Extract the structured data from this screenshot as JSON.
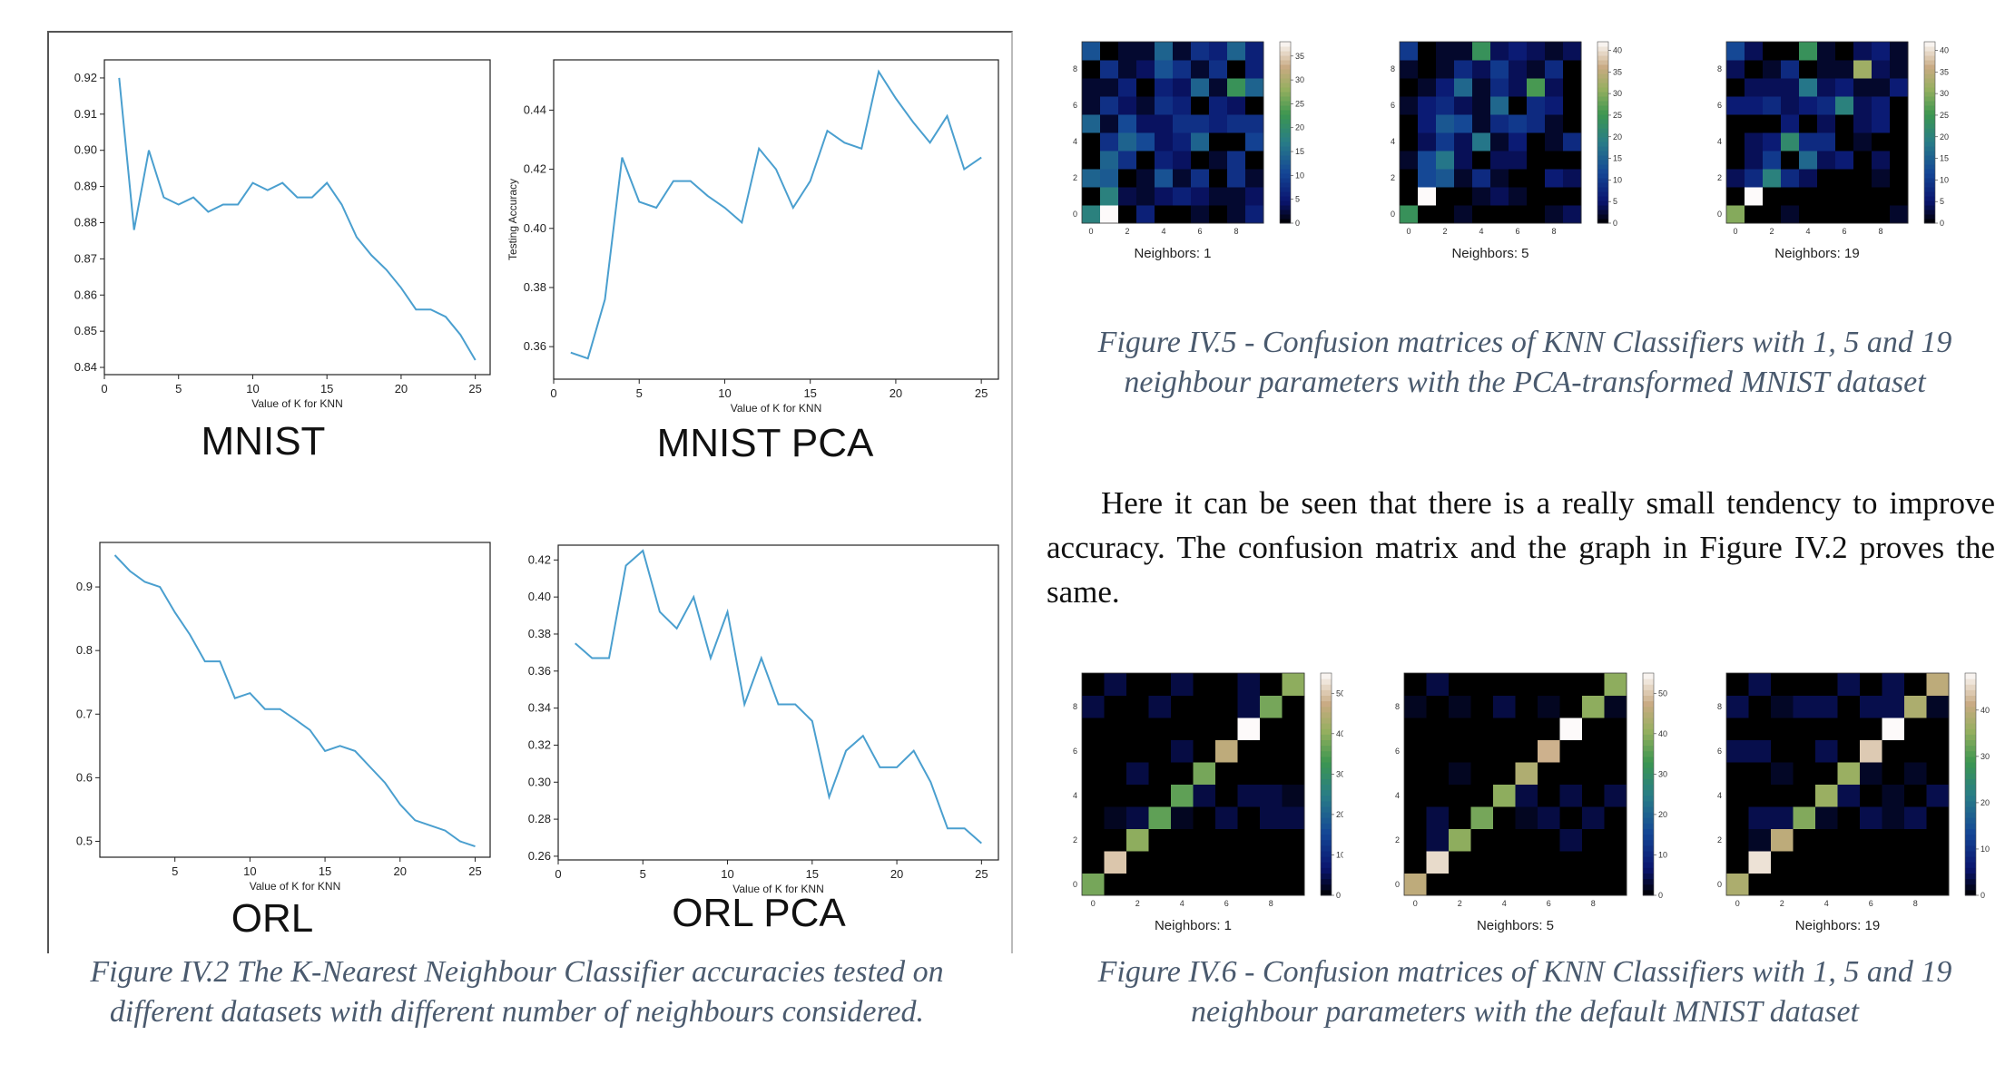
{
  "figure_iv2": {
    "caption": "Figure IV.2 The K-Nearest Neighbour Classifier accuracies tested on different datasets with different number of neighbours considered."
  },
  "figure_iv5": {
    "caption": "Figure IV.5 - Confusion matrices of KNN Classifiers with 1, 5 and 19 neighbour parameters with the PCA-transformed MNIST dataset"
  },
  "figure_iv6": {
    "caption": "Figure IV.6 - Confusion matrices of KNN Classifiers with 1, 5 and 19 neighbour parameters with the default MNIST dataset"
  },
  "body_paragraph": "Here it can be seen that there is a really small tendency to improve accuracy. The confusion matrix and the graph in Figure IV.2 proves the same.",
  "chart_data": [
    {
      "type": "line",
      "panel_label": "MNIST",
      "xlabel": "Value of K for KNN",
      "ylabel": "",
      "xlim": [
        0,
        26
      ],
      "ylim": [
        0.838,
        0.925
      ],
      "xticks": [
        0,
        5,
        10,
        15,
        20,
        25
      ],
      "yticks": [
        0.84,
        0.85,
        0.86,
        0.87,
        0.88,
        0.89,
        0.9,
        0.91,
        0.92
      ],
      "ytick_labels": [
        "0.84",
        "0.85",
        "0.86",
        "0.87",
        "0.88",
        "0.89",
        "0.90",
        "0.91",
        "0.92"
      ],
      "color": "#4a9fcf",
      "x": [
        1,
        2,
        3,
        4,
        5,
        6,
        7,
        8,
        9,
        10,
        11,
        12,
        13,
        14,
        15,
        16,
        17,
        18,
        19,
        20,
        21,
        22,
        23,
        24,
        25
      ],
      "y": [
        0.92,
        0.878,
        0.9,
        0.887,
        0.885,
        0.887,
        0.883,
        0.885,
        0.885,
        0.891,
        0.889,
        0.891,
        0.887,
        0.887,
        0.891,
        0.885,
        0.876,
        0.871,
        0.867,
        0.862,
        0.856,
        0.856,
        0.854,
        0.849,
        0.842
      ]
    },
    {
      "type": "line",
      "panel_label": "MNIST PCA",
      "xlabel": "Value of K for KNN",
      "ylabel": "Testing Accuracy",
      "xlim": [
        0,
        26
      ],
      "ylim": [
        0.349,
        0.457
      ],
      "xticks": [
        0,
        5,
        10,
        15,
        20,
        25
      ],
      "yticks": [
        0.36,
        0.38,
        0.4,
        0.42,
        0.44
      ],
      "ytick_labels": [
        "0.36",
        "0.38",
        "0.40",
        "0.42",
        "0.44"
      ],
      "color": "#4a9fcf",
      "x": [
        1,
        2,
        3,
        4,
        5,
        6,
        7,
        8,
        9,
        10,
        11,
        12,
        13,
        14,
        15,
        16,
        17,
        18,
        19,
        20,
        21,
        22,
        23,
        24,
        25
      ],
      "y": [
        0.358,
        0.356,
        0.376,
        0.424,
        0.409,
        0.407,
        0.416,
        0.416,
        0.411,
        0.407,
        0.402,
        0.427,
        0.42,
        0.407,
        0.416,
        0.433,
        0.429,
        0.427,
        0.453,
        0.444,
        0.436,
        0.429,
        0.438,
        0.42,
        0.424
      ]
    },
    {
      "type": "line",
      "panel_label": "ORL",
      "xlabel": "Value of K for KNN",
      "ylabel": "",
      "xlim": [
        0,
        26
      ],
      "ylim": [
        0.475,
        0.97
      ],
      "xticks": [
        5,
        10,
        15,
        20,
        25
      ],
      "yticks": [
        0.5,
        0.6,
        0.7,
        0.8,
        0.9
      ],
      "ytick_labels": [
        "0.5",
        "0.6",
        "0.7",
        "0.8",
        "0.9"
      ],
      "color": "#4a9fcf",
      "x": [
        1,
        2,
        3,
        4,
        5,
        6,
        7,
        8,
        9,
        10,
        11,
        12,
        13,
        14,
        15,
        16,
        17,
        18,
        19,
        20,
        21,
        22,
        23,
        24,
        25
      ],
      "y": [
        0.95,
        0.925,
        0.908,
        0.9,
        0.86,
        0.825,
        0.783,
        0.783,
        0.725,
        0.733,
        0.708,
        0.708,
        0.692,
        0.675,
        0.642,
        0.65,
        0.642,
        0.617,
        0.592,
        0.558,
        0.533,
        0.525,
        0.517,
        0.5,
        0.492
      ]
    },
    {
      "type": "line",
      "panel_label": "ORL PCA",
      "xlabel": "Value of K for KNN",
      "ylabel": "",
      "xlim": [
        0,
        26
      ],
      "ylim": [
        0.258,
        0.428
      ],
      "xticks": [
        0,
        5,
        10,
        15,
        20,
        25
      ],
      "yticks": [
        0.26,
        0.28,
        0.3,
        0.32,
        0.34,
        0.36,
        0.38,
        0.4,
        0.42
      ],
      "ytick_labels": [
        "0.26",
        "0.28",
        "0.30",
        "0.32",
        "0.34",
        "0.36",
        "0.38",
        "0.40",
        "0.42"
      ],
      "color": "#4a9fcf",
      "x": [
        1,
        2,
        3,
        4,
        5,
        6,
        7,
        8,
        9,
        10,
        11,
        12,
        13,
        14,
        15,
        16,
        17,
        18,
        19,
        20,
        21,
        22,
        23,
        24,
        25
      ],
      "y": [
        0.375,
        0.367,
        0.367,
        0.417,
        0.425,
        0.392,
        0.383,
        0.4,
        0.367,
        0.392,
        0.342,
        0.367,
        0.342,
        0.342,
        0.333,
        0.292,
        0.317,
        0.325,
        0.308,
        0.308,
        0.317,
        0.3,
        0.275,
        0.275,
        0.267
      ]
    },
    {
      "type": "heatmap",
      "group": "figure_iv5",
      "xlabel": "Neighbors: 1",
      "colorbar_ticks": [
        0,
        5,
        10,
        15,
        20,
        25,
        30,
        35
      ],
      "vmax": 38,
      "z": [
        [
          18,
          38,
          0,
          6,
          0,
          0,
          2,
          0,
          2,
          6
        ],
        [
          0,
          18,
          3,
          2,
          4,
          6,
          4,
          2,
          2,
          4
        ],
        [
          14,
          13,
          0,
          2,
          12,
          2,
          8,
          0,
          8,
          2
        ],
        [
          0,
          14,
          8,
          0,
          6,
          4,
          0,
          2,
          8,
          0
        ],
        [
          0,
          8,
          14,
          11,
          4,
          6,
          14,
          0,
          0,
          10
        ],
        [
          14,
          2,
          11,
          4,
          4,
          8,
          8,
          6,
          8,
          8
        ],
        [
          2,
          8,
          4,
          2,
          8,
          6,
          0,
          6,
          4,
          0
        ],
        [
          2,
          2,
          6,
          0,
          6,
          4,
          14,
          2,
          22,
          14
        ],
        [
          0,
          8,
          2,
          4,
          12,
          8,
          2,
          8,
          0,
          6
        ],
        [
          12,
          0,
          2,
          2,
          14,
          2,
          8,
          6,
          14,
          6
        ]
      ]
    },
    {
      "type": "heatmap",
      "group": "figure_iv5",
      "xlabel": "Neighbors: 5",
      "colorbar_ticks": [
        0,
        5,
        10,
        15,
        20,
        25,
        30,
        35,
        40
      ],
      "vmax": 42,
      "z": [
        [
          24,
          0,
          0,
          2,
          0,
          0,
          0,
          0,
          2,
          4
        ],
        [
          0,
          42,
          0,
          0,
          2,
          4,
          2,
          0,
          0,
          0
        ],
        [
          0,
          12,
          14,
          2,
          8,
          2,
          0,
          0,
          6,
          4
        ],
        [
          2,
          12,
          18,
          4,
          0,
          4,
          4,
          0,
          0,
          0
        ],
        [
          0,
          4,
          10,
          4,
          18,
          2,
          6,
          0,
          2,
          8
        ],
        [
          0,
          6,
          14,
          12,
          2,
          8,
          10,
          8,
          2,
          0
        ],
        [
          2,
          6,
          8,
          4,
          2,
          16,
          0,
          8,
          6,
          0
        ],
        [
          0,
          2,
          6,
          16,
          2,
          8,
          4,
          26,
          4,
          0
        ],
        [
          2,
          0,
          2,
          8,
          4,
          10,
          4,
          2,
          8,
          0
        ],
        [
          10,
          0,
          2,
          2,
          24,
          4,
          6,
          4,
          2,
          4
        ]
      ]
    },
    {
      "type": "heatmap",
      "group": "figure_iv5",
      "xlabel": "Neighbors: 19",
      "colorbar_ticks": [
        0,
        5,
        10,
        15,
        20,
        25,
        30,
        35,
        40
      ],
      "vmax": 42,
      "z": [
        [
          30,
          0,
          0,
          2,
          0,
          0,
          0,
          0,
          0,
          2
        ],
        [
          0,
          42,
          0,
          0,
          0,
          0,
          0,
          0,
          0,
          0
        ],
        [
          4,
          8,
          20,
          8,
          4,
          0,
          0,
          0,
          2,
          0
        ],
        [
          0,
          4,
          10,
          0,
          16,
          4,
          6,
          0,
          4,
          0
        ],
        [
          0,
          4,
          6,
          22,
          8,
          8,
          0,
          2,
          0,
          0
        ],
        [
          0,
          0,
          0,
          6,
          0,
          4,
          0,
          4,
          6,
          0
        ],
        [
          6,
          6,
          8,
          4,
          6,
          8,
          20,
          4,
          6,
          0
        ],
        [
          0,
          4,
          4,
          4,
          18,
          4,
          6,
          2,
          2,
          6
        ],
        [
          4,
          0,
          2,
          8,
          0,
          2,
          2,
          32,
          4,
          2
        ],
        [
          12,
          4,
          0,
          0,
          24,
          2,
          0,
          4,
          6,
          2
        ]
      ]
    },
    {
      "type": "heatmap",
      "group": "figure_iv6",
      "xlabel": "Neighbors: 1",
      "colorbar_ticks": [
        0,
        10,
        20,
        30,
        40,
        50
      ],
      "vmax": 55,
      "z": [
        [
          38,
          0,
          0,
          0,
          0,
          0,
          0,
          0,
          0,
          0
        ],
        [
          0,
          50,
          0,
          0,
          0,
          0,
          0,
          0,
          0,
          0
        ],
        [
          0,
          0,
          40,
          0,
          0,
          0,
          0,
          0,
          0,
          0
        ],
        [
          0,
          2,
          4,
          36,
          2,
          0,
          4,
          0,
          4,
          4
        ],
        [
          0,
          0,
          0,
          0,
          36,
          4,
          0,
          4,
          4,
          2
        ],
        [
          0,
          0,
          4,
          0,
          0,
          38,
          0,
          0,
          0,
          0
        ],
        [
          0,
          0,
          0,
          0,
          4,
          0,
          46,
          0,
          0,
          0
        ],
        [
          0,
          0,
          0,
          0,
          0,
          0,
          0,
          55,
          0,
          0
        ],
        [
          4,
          0,
          0,
          4,
          0,
          0,
          0,
          4,
          38,
          0
        ],
        [
          0,
          4,
          0,
          0,
          4,
          0,
          0,
          4,
          0,
          40
        ]
      ]
    },
    {
      "type": "heatmap",
      "group": "figure_iv6",
      "xlabel": "Neighbors: 5",
      "colorbar_ticks": [
        0,
        10,
        20,
        30,
        40,
        50
      ],
      "vmax": 55,
      "z": [
        [
          46,
          0,
          0,
          0,
          0,
          0,
          0,
          0,
          0,
          0
        ],
        [
          0,
          52,
          0,
          0,
          0,
          0,
          0,
          0,
          0,
          0
        ],
        [
          0,
          4,
          40,
          0,
          0,
          0,
          0,
          4,
          0,
          0
        ],
        [
          0,
          4,
          0,
          38,
          0,
          2,
          4,
          0,
          4,
          0
        ],
        [
          0,
          0,
          0,
          0,
          40,
          4,
          0,
          4,
          0,
          4
        ],
        [
          0,
          0,
          2,
          0,
          0,
          44,
          0,
          0,
          0,
          0
        ],
        [
          0,
          0,
          0,
          0,
          0,
          0,
          48,
          0,
          0,
          0
        ],
        [
          0,
          0,
          0,
          0,
          0,
          0,
          0,
          55,
          0,
          0
        ],
        [
          2,
          0,
          2,
          0,
          4,
          0,
          2,
          0,
          40,
          2
        ],
        [
          0,
          4,
          0,
          0,
          0,
          0,
          0,
          0,
          0,
          40
        ]
      ]
    },
    {
      "type": "heatmap",
      "group": "figure_iv6",
      "xlabel": "Neighbors: 19",
      "colorbar_ticks": [
        0,
        10,
        20,
        30,
        40
      ],
      "vmax": 48,
      "z": [
        [
          38,
          0,
          0,
          0,
          0,
          0,
          0,
          0,
          0,
          0
        ],
        [
          0,
          46,
          0,
          0,
          0,
          0,
          0,
          0,
          0,
          0
        ],
        [
          0,
          2,
          40,
          0,
          0,
          0,
          0,
          0,
          0,
          0
        ],
        [
          0,
          4,
          4,
          34,
          2,
          0,
          4,
          2,
          4,
          0
        ],
        [
          0,
          0,
          0,
          0,
          36,
          4,
          0,
          2,
          0,
          4
        ],
        [
          0,
          0,
          2,
          0,
          0,
          36,
          2,
          0,
          2,
          0
        ],
        [
          4,
          4,
          0,
          0,
          4,
          0,
          44,
          0,
          0,
          0
        ],
        [
          0,
          0,
          0,
          0,
          0,
          0,
          0,
          48,
          0,
          0
        ],
        [
          4,
          0,
          2,
          4,
          4,
          0,
          4,
          4,
          38,
          2
        ],
        [
          0,
          4,
          0,
          0,
          0,
          4,
          0,
          4,
          0,
          40
        ]
      ]
    }
  ]
}
